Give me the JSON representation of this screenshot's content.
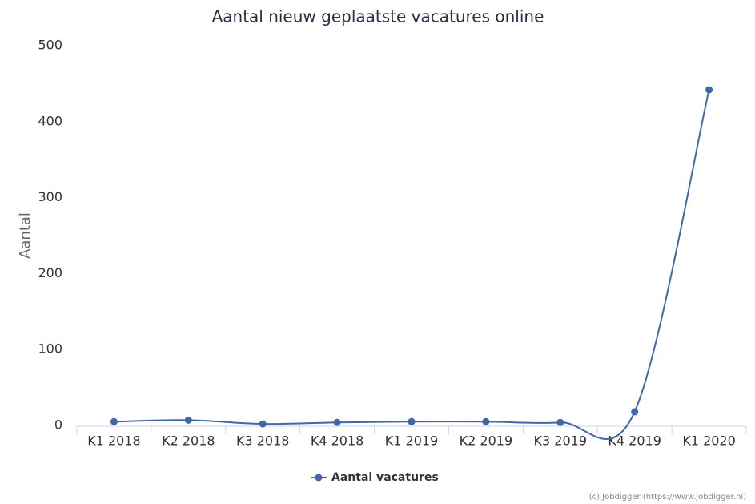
{
  "chart_data": {
    "type": "line",
    "title": "Aantal nieuw geplaatste vacatures online",
    "ylabel": "Aantal",
    "categories": [
      "K1 2018",
      "K2 2018",
      "K3 2018",
      "K4 2018",
      "K1 2019",
      "K2 2019",
      "K3 2019",
      "K4 2019",
      "K1 2020"
    ],
    "series": [
      {
        "name": "Aantal vacatures",
        "color": "#4267a8",
        "values": [
          5,
          7,
          2,
          4,
          5,
          5,
          4,
          18,
          442
        ]
      }
    ],
    "ylim": [
      0,
      500
    ],
    "yticks": [
      0,
      100,
      200,
      300,
      400,
      500
    ],
    "credits": "(c) Jobdigger (https://www.jobdigger.nl)"
  }
}
